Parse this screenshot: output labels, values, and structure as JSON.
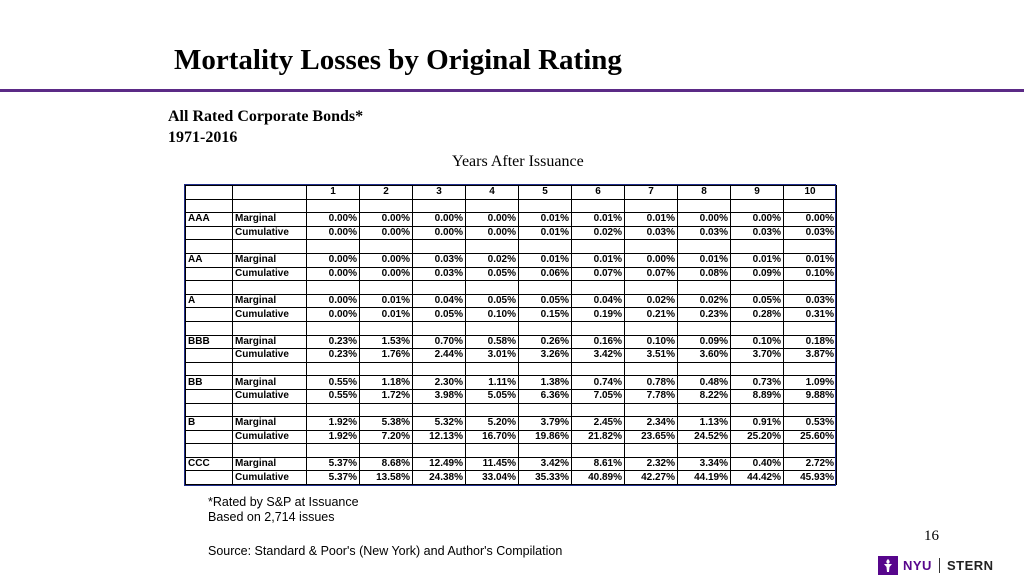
{
  "slide": {
    "title": "Mortality Losses by Original Rating",
    "subtitle_line1": "All Rated Corporate Bonds*",
    "subtitle_line2": "1971-2016",
    "years_label": "Years After Issuance",
    "footnote_line1": "*Rated by S&P at Issuance",
    "footnote_line2": "Based on 2,714 issues",
    "source": "Source: Standard & Poor's (New York) and Author's Compilation",
    "page_number": "16",
    "logo_nyu": "NYU",
    "logo_stern": "STERN"
  },
  "table": {
    "years": [
      "1",
      "2",
      "3",
      "4",
      "5",
      "6",
      "7",
      "8",
      "9",
      "10"
    ],
    "ratings": [
      {
        "rating": "AAA",
        "rows": [
          {
            "type": "Marginal",
            "values": [
              "0.00%",
              "0.00%",
              "0.00%",
              "0.00%",
              "0.01%",
              "0.01%",
              "0.01%",
              "0.00%",
              "0.00%",
              "0.00%"
            ]
          },
          {
            "type": "Cumulative",
            "values": [
              "0.00%",
              "0.00%",
              "0.00%",
              "0.00%",
              "0.01%",
              "0.02%",
              "0.03%",
              "0.03%",
              "0.03%",
              "0.03%"
            ]
          }
        ]
      },
      {
        "rating": "AA",
        "rows": [
          {
            "type": "Marginal",
            "values": [
              "0.00%",
              "0.00%",
              "0.03%",
              "0.02%",
              "0.01%",
              "0.01%",
              "0.00%",
              "0.01%",
              "0.01%",
              "0.01%"
            ]
          },
          {
            "type": "Cumulative",
            "values": [
              "0.00%",
              "0.00%",
              "0.03%",
              "0.05%",
              "0.06%",
              "0.07%",
              "0.07%",
              "0.08%",
              "0.09%",
              "0.10%"
            ]
          }
        ]
      },
      {
        "rating": "A",
        "rows": [
          {
            "type": "Marginal",
            "values": [
              "0.00%",
              "0.01%",
              "0.04%",
              "0.05%",
              "0.05%",
              "0.04%",
              "0.02%",
              "0.02%",
              "0.05%",
              "0.03%"
            ]
          },
          {
            "type": "Cumulative",
            "values": [
              "0.00%",
              "0.01%",
              "0.05%",
              "0.10%",
              "0.15%",
              "0.19%",
              "0.21%",
              "0.23%",
              "0.28%",
              "0.31%"
            ]
          }
        ]
      },
      {
        "rating": "BBB",
        "rows": [
          {
            "type": "Marginal",
            "values": [
              "0.23%",
              "1.53%",
              "0.70%",
              "0.58%",
              "0.26%",
              "0.16%",
              "0.10%",
              "0.09%",
              "0.10%",
              "0.18%"
            ]
          },
          {
            "type": "Cumulative",
            "values": [
              "0.23%",
              "1.76%",
              "2.44%",
              "3.01%",
              "3.26%",
              "3.42%",
              "3.51%",
              "3.60%",
              "3.70%",
              "3.87%"
            ]
          }
        ]
      },
      {
        "rating": "BB",
        "rows": [
          {
            "type": "Marginal",
            "values": [
              "0.55%",
              "1.18%",
              "2.30%",
              "1.11%",
              "1.38%",
              "0.74%",
              "0.78%",
              "0.48%",
              "0.73%",
              "1.09%"
            ]
          },
          {
            "type": "Cumulative",
            "values": [
              "0.55%",
              "1.72%",
              "3.98%",
              "5.05%",
              "6.36%",
              "7.05%",
              "7.78%",
              "8.22%",
              "8.89%",
              "9.88%"
            ]
          }
        ]
      },
      {
        "rating": "B",
        "rows": [
          {
            "type": "Marginal",
            "values": [
              "1.92%",
              "5.38%",
              "5.32%",
              "5.20%",
              "3.79%",
              "2.45%",
              "2.34%",
              "1.13%",
              "0.91%",
              "0.53%"
            ]
          },
          {
            "type": "Cumulative",
            "values": [
              "1.92%",
              "7.20%",
              "12.13%",
              "16.70%",
              "19.86%",
              "21.82%",
              "23.65%",
              "24.52%",
              "25.20%",
              "25.60%"
            ]
          }
        ]
      },
      {
        "rating": "CCC",
        "rows": [
          {
            "type": "Marginal",
            "values": [
              "5.37%",
              "8.68%",
              "12.49%",
              "11.45%",
              "3.42%",
              "8.61%",
              "2.32%",
              "3.34%",
              "0.40%",
              "2.72%"
            ]
          },
          {
            "type": "Cumulative",
            "values": [
              "5.37%",
              "13.58%",
              "24.38%",
              "33.04%",
              "35.33%",
              "40.89%",
              "42.27%",
              "44.19%",
              "44.42%",
              "45.93%"
            ]
          }
        ]
      }
    ]
  },
  "colors": {
    "rule": "#5b2a86",
    "logo_purple": "#57068c",
    "table_border": "#1f2d8a"
  },
  "icons": {
    "logo": "nyu-torch-icon"
  }
}
